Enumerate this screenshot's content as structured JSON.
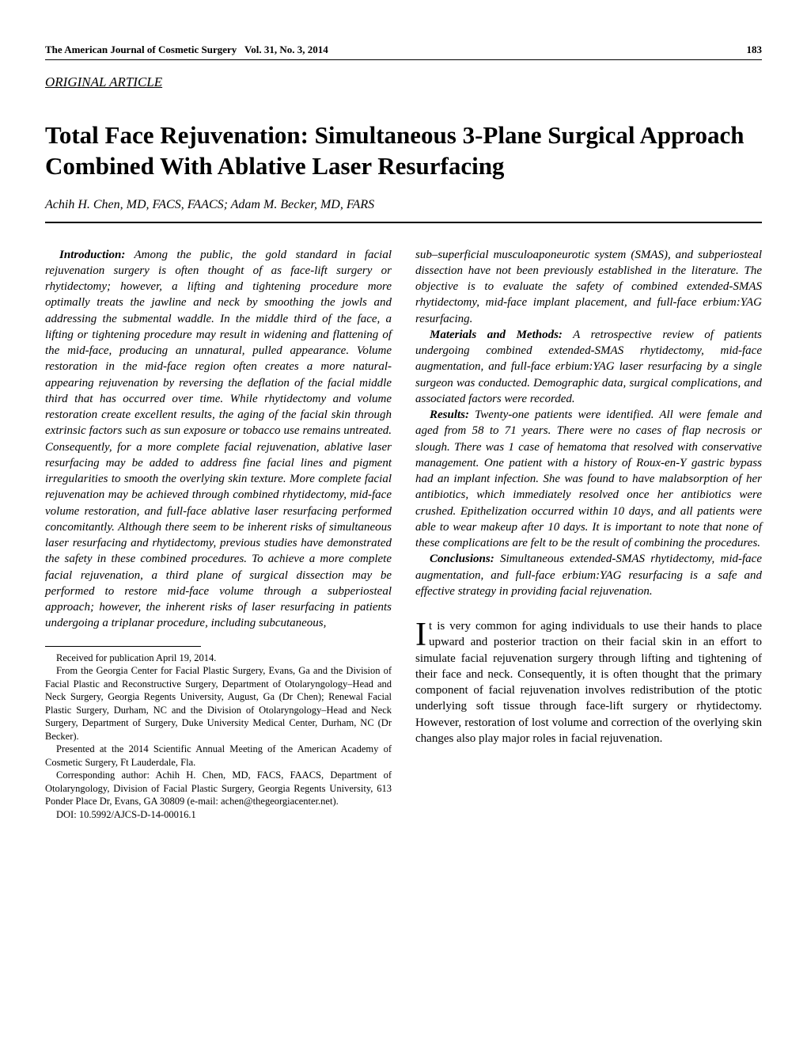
{
  "header": {
    "journal": "The American Journal of Cosmetic Surgery",
    "volume": "Vol. 31, No. 3, 2014",
    "page": "183"
  },
  "section_label": "ORIGINAL ARTICLE",
  "title": "Total Face Rejuvenation: Simultaneous 3-Plane Surgical Approach Combined With Ablative Laser Resurfacing",
  "authors": "Achih H. Chen, MD, FACS, FAACS; Adam M. Becker, MD, FARS",
  "abstract": {
    "intro_label": "Introduction:",
    "intro_text": " Among the public, the gold standard in facial rejuvenation surgery is often thought of as face-lift surgery or rhytidectomy; however, a lifting and tightening procedure more optimally treats the jawline and neck by smoothing the jowls and addressing the submental waddle. In the middle third of the face, a lifting or tightening procedure may result in widening and flattening of the mid-face, producing an unnatural, pulled appearance. Volume restoration in the mid-face region often creates a more natural-appearing rejuvenation by reversing the deflation of the facial middle third that has occurred over time. While rhytidectomy and volume restoration create excellent results, the aging of the facial skin through extrinsic factors such as sun exposure or tobacco use remains untreated. Consequently, for a more complete facial rejuvenation, ablative laser resurfacing may be added to address fine facial lines and pigment irregularities to smooth the overlying skin texture. More complete facial rejuvenation may be achieved through combined rhytidectomy, mid-face volume restoration, and full-face ablative laser resurfacing performed concomitantly. Although there seem to be inherent risks of simultaneous laser resurfacing and rhytidectomy, previous studies have demonstrated the safety in these combined procedures. To achieve a more complete facial rejuvenation, a third plane of surgical dissection may be performed to restore mid-face volume through a subperiosteal approach; however, the inherent risks of laser resurfacing in patients undergoing a triplanar procedure, including subcutaneous,",
    "intro_cont": "sub–superficial musculoaponeurotic system (SMAS), and subperiosteal dissection have not been previously established in the literature. The objective is to evaluate the safety of combined extended-SMAS rhytidectomy, mid-face implant placement, and full-face erbium:YAG resurfacing.",
    "methods_label": "Materials and Methods:",
    "methods_text": " A retrospective review of patients undergoing combined extended-SMAS rhytidectomy, mid-face augmentation, and full-face erbium:YAG laser resurfacing by a single surgeon was conducted. Demographic data, surgical complications, and associated factors were recorded.",
    "results_label": "Results:",
    "results_text": " Twenty-one patients were identified. All were female and aged from 58 to 71 years. There were no cases of flap necrosis or slough. There was 1 case of hematoma that resolved with conservative management. One patient with a history of Roux-en-Y gastric bypass had an implant infection. She was found to have malabsorption of her antibiotics, which immediately resolved once her antibiotics were crushed. Epithelization occurred within 10 days, and all patients were able to wear makeup after 10 days. It is important to note that none of these complications are felt to be the result of combining the procedures.",
    "conclusions_label": "Conclusions:",
    "conclusions_text": " Simultaneous extended-SMAS rhytidectomy, mid-face augmentation, and full-face erbium:YAG resurfacing is a safe and effective strategy in providing facial rejuvenation."
  },
  "body": {
    "dropcap": "I",
    "text": "t is very common for aging individuals to use their hands to place upward and posterior traction on their facial skin in an effort to simulate facial rejuvenation surgery through lifting and tightening of their face and neck. Consequently, it is often thought that the primary component of facial rejuvenation involves redistribution of the ptotic underlying soft tissue through face-lift surgery or rhytidectomy. However, restoration of lost volume and correction of the overlying skin changes also play major roles in facial rejuvenation."
  },
  "footnotes": {
    "received": "Received for publication April 19, 2014.",
    "affiliation": "From the Georgia Center for Facial Plastic Surgery, Evans, Ga and the Division of Facial Plastic and Reconstructive Surgery, Department of Otolaryngology–Head and Neck Surgery, Georgia Regents University, August, Ga (Dr Chen); Renewal Facial Plastic Surgery, Durham, NC and the Division of Otolaryngology–Head and Neck Surgery, Department of Surgery, Duke University Medical Center, Durham, NC (Dr Becker).",
    "presented": "Presented at the 2014 Scientific Annual Meeting of the American Academy of Cosmetic Surgery, Ft Lauderdale, Fla.",
    "corresponding": "Corresponding author: Achih H. Chen, MD, FACS, FAACS, Department of Otolaryngology, Division of Facial Plastic Surgery, Georgia Regents University, 613 Ponder Place Dr, Evans, GA 30809 (e-mail: achen@thegeorgiacenter.net).",
    "doi": "DOI: 10.5992/AJCS-D-14-00016.1"
  }
}
